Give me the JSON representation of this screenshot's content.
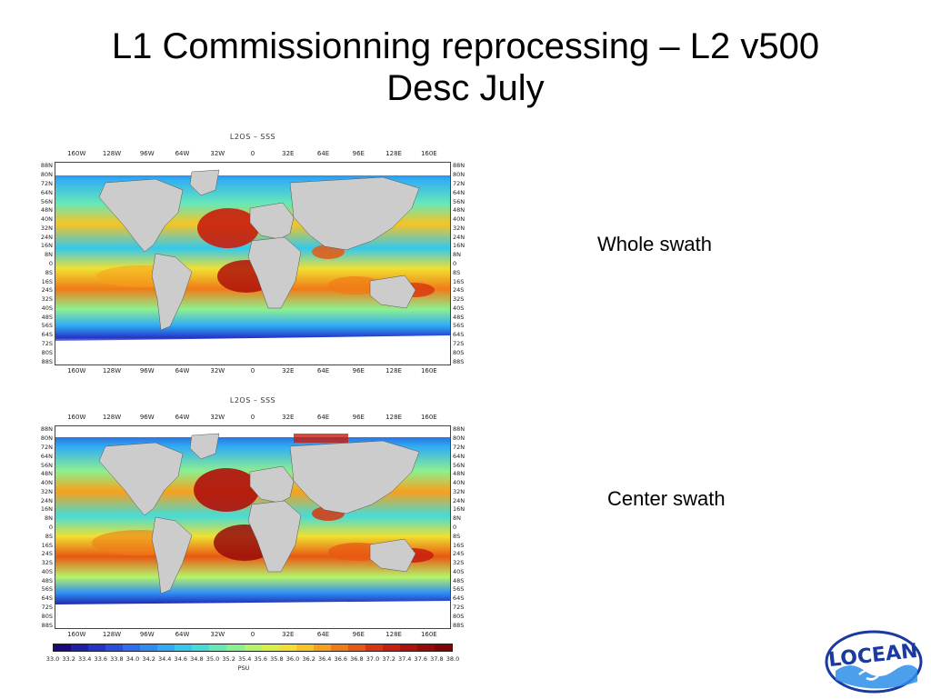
{
  "slide": {
    "title_line1": "L1 Commissionning reprocessing – L2 v500",
    "title_line2": "Desc July"
  },
  "panels": [
    {
      "title": "L2OS – SSS",
      "caption": "Whole swath",
      "lon_labels": [
        "160W",
        "128W",
        "96W",
        "64W",
        "32W",
        "0",
        "32E",
        "64E",
        "96E",
        "128E",
        "160E"
      ],
      "lat_labels": [
        "88N",
        "80N",
        "72N",
        "64N",
        "56N",
        "48N",
        "40N",
        "32N",
        "24N",
        "16N",
        "8N",
        "0",
        "8S",
        "16S",
        "24S",
        "32S",
        "40S",
        "48S",
        "56S",
        "64S",
        "72S",
        "80S",
        "88S"
      ]
    },
    {
      "title": "L2OS – SSS",
      "caption": "Center swath",
      "lon_labels": [
        "160W",
        "128W",
        "96W",
        "64W",
        "32W",
        "0",
        "32E",
        "64E",
        "96E",
        "128E",
        "160E"
      ],
      "lat_labels": [
        "88N",
        "80N",
        "72N",
        "64N",
        "56N",
        "48N",
        "40N",
        "32N",
        "24N",
        "16N",
        "8N",
        "0",
        "8S",
        "16S",
        "24S",
        "32S",
        "40S",
        "48S",
        "56S",
        "64S",
        "72S",
        "80S",
        "88S"
      ]
    }
  ],
  "colorbar": {
    "labels": [
      "33.0",
      "33.2",
      "33.4",
      "33.6",
      "33.8",
      "34.0",
      "34.2",
      "34.4",
      "34.6",
      "34.8",
      "35.0",
      "35.2",
      "35.4",
      "35.6",
      "35.8",
      "36.0",
      "36.2",
      "36.4",
      "36.6",
      "36.8",
      "37.0",
      "37.2",
      "37.4",
      "37.6",
      "37.8",
      "38.0"
    ],
    "unit": "PSU",
    "colors": [
      "#1a0a7a",
      "#1f1fa8",
      "#2533c8",
      "#2a4de0",
      "#2f6cf0",
      "#2f8cf5",
      "#30acf5",
      "#33c8ee",
      "#45dcd8",
      "#66e8b8",
      "#8cf090",
      "#b4f46a",
      "#d8f046",
      "#f0e032",
      "#f8c424",
      "#f8a01c",
      "#f07c16",
      "#e85812",
      "#d83610",
      "#c81e0e",
      "#b0100c",
      "#980a0a",
      "#800606"
    ]
  },
  "logo": {
    "text": "LOCEAN",
    "primary_color": "#1a3aa0",
    "accent_color": "#2b8ee8"
  }
}
